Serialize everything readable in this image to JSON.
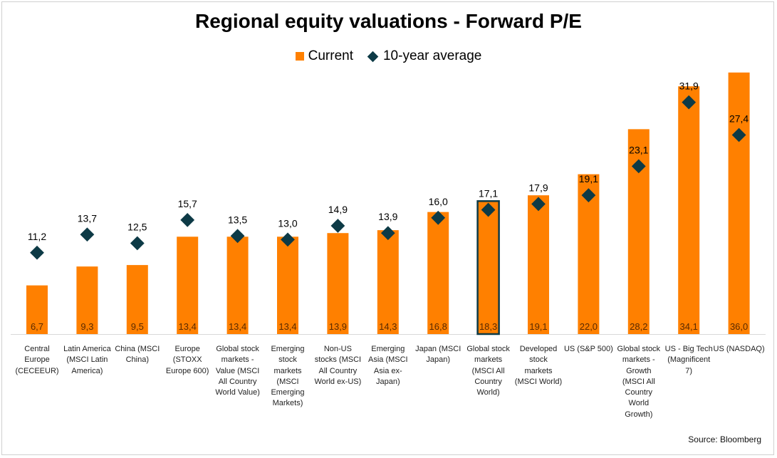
{
  "chart_data": {
    "type": "bar",
    "title": "Regional equity valuations - Forward P/E",
    "xlabel": "",
    "ylabel": "",
    "ylim": [
      0,
      36
    ],
    "legend_position": "top-center",
    "categories": [
      "Central\nEurope\n(CECEEUR)",
      "Latin America\n(MSCI Latin\nAmerica)",
      "China (MSCI\nChina)",
      "Europe\n(STOXX\nEurope 600)",
      "Global stock\nmarkets -\nValue (MSCI\nAll Country\nWorld Value)",
      "Emerging\nstock\nmarkets\n(MSCI\nEmerging\nMarkets)",
      "Non-US\nstocks (MSCI\nAll Country\nWorld ex-US)",
      "Emerging\nAsia (MSCI\nAsia ex-\nJapan)",
      "Japan (MSCI\nJapan)",
      "Global stock\nmarkets\n(MSCI All\nCountry\nWorld)",
      "Developed\nstock\nmarkets\n(MSCI World)",
      "US (S&P 500)",
      "Global stock\nmarkets -\nGrowth\n(MSCI All\nCountry\nWorld\nGrowth)",
      "US - Big Tech\n(Magnificent\n7)",
      "US (NASDAQ)"
    ],
    "series": [
      {
        "name": "Current",
        "type": "bar",
        "color": "#ff8000",
        "values": [
          6.7,
          9.3,
          9.5,
          13.4,
          13.4,
          13.4,
          13.9,
          14.3,
          16.8,
          18.3,
          19.1,
          22.0,
          28.2,
          34.1,
          36.0
        ],
        "labels": [
          "6,7",
          "9,3",
          "9,5",
          "13,4",
          "13,4",
          "13,4",
          "13,9",
          "14,3",
          "16,8",
          "18,3",
          "19,1",
          "22,0",
          "28,2",
          "34,1",
          "36,0"
        ]
      },
      {
        "name": "10-year average",
        "type": "scatter",
        "marker": "diamond",
        "color": "#0d3a46",
        "values": [
          11.2,
          13.7,
          12.5,
          15.7,
          13.5,
          13.0,
          14.9,
          13.9,
          16.0,
          17.1,
          17.9,
          19.1,
          23.1,
          31.9,
          27.4
        ],
        "labels": [
          "11,2",
          "13,7",
          "12,5",
          "15,7",
          "13,5",
          "13,0",
          "14,9",
          "13,9",
          "16,0",
          "17,1",
          "17,9",
          "19,1",
          "23,1",
          "31,9",
          "27,4"
        ]
      }
    ],
    "highlighted_category_index": 9,
    "highlight_color": "#0d3a46",
    "bar_label_color": "#5a2a00"
  },
  "source": "Source: Bloomberg"
}
